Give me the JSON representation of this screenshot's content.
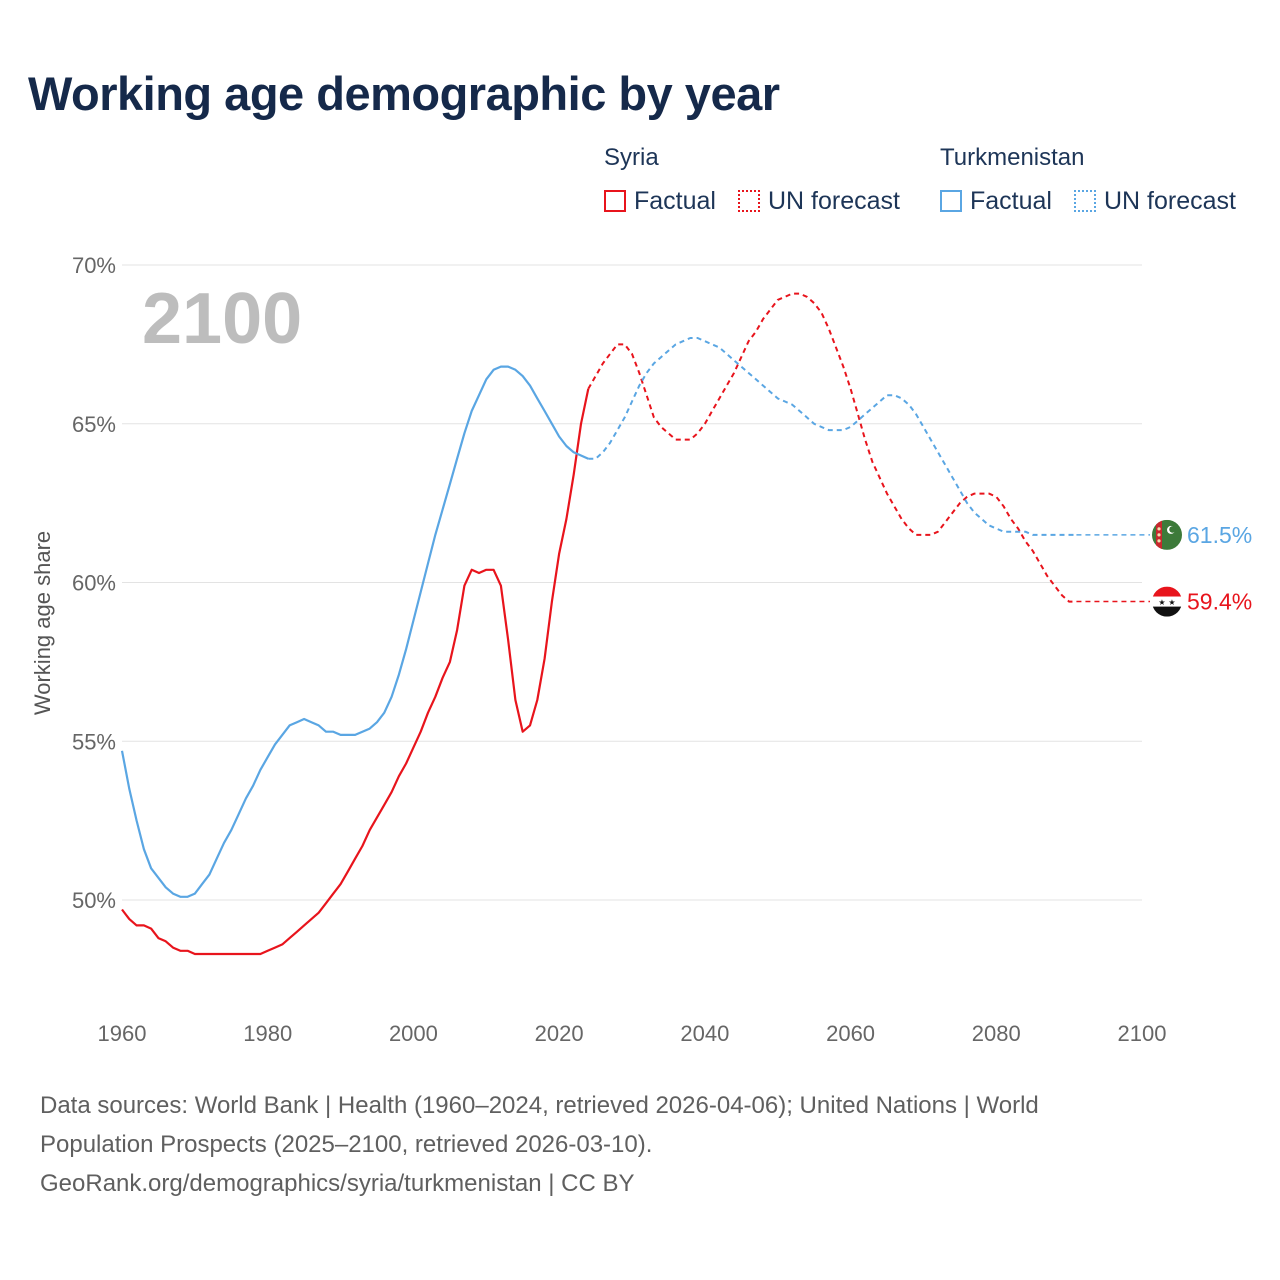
{
  "title": "Working age demographic by year",
  "legend": {
    "groups": [
      {
        "name": "Syria",
        "color": "#e8141c",
        "factual": "Factual",
        "forecast": "UN forecast"
      },
      {
        "name": "Turkmenistan",
        "color": "#5aa6e3",
        "factual": "Factual",
        "forecast": "UN forecast"
      }
    ]
  },
  "year_display": "2100",
  "source": {
    "line1": "Data sources: World Bank | Health (1960–2024, retrieved 2026-04-06); United Nations | World",
    "line2": "Population Prospects (2025–2100, retrieved 2026-03-10).",
    "line3": "GeoRank.org/demographics/syria/turkmenistan | CC BY"
  },
  "chart_data": {
    "type": "line",
    "title": "Working age demographic by year",
    "xlabel": "",
    "ylabel": "Working age share",
    "xlim": [
      1960,
      2100
    ],
    "ylim": [
      46.5,
      71
    ],
    "x_ticks": [
      1960,
      1980,
      2000,
      2020,
      2040,
      2060,
      2080,
      2100
    ],
    "y_ticks": [
      50,
      55,
      60,
      65,
      70
    ],
    "y_tick_labels": [
      "50%",
      "55%",
      "60%",
      "65%",
      "70%"
    ],
    "grid": true,
    "factual_end_year": 2024,
    "series": [
      {
        "name": "Syria",
        "color": "#e8141c",
        "end_label": "59.4%",
        "flag": "syria-flag",
        "points": [
          [
            1960,
            49.7
          ],
          [
            1961,
            49.4
          ],
          [
            1962,
            49.2
          ],
          [
            1963,
            49.2
          ],
          [
            1964,
            49.1
          ],
          [
            1965,
            48.8
          ],
          [
            1966,
            48.7
          ],
          [
            1967,
            48.5
          ],
          [
            1968,
            48.4
          ],
          [
            1969,
            48.4
          ],
          [
            1970,
            48.3
          ],
          [
            1971,
            48.3
          ],
          [
            1972,
            48.3
          ],
          [
            1973,
            48.3
          ],
          [
            1974,
            48.3
          ],
          [
            1975,
            48.3
          ],
          [
            1976,
            48.3
          ],
          [
            1977,
            48.3
          ],
          [
            1978,
            48.3
          ],
          [
            1979,
            48.3
          ],
          [
            1980,
            48.4
          ],
          [
            1981,
            48.5
          ],
          [
            1982,
            48.6
          ],
          [
            1983,
            48.8
          ],
          [
            1984,
            49.0
          ],
          [
            1985,
            49.2
          ],
          [
            1986,
            49.4
          ],
          [
            1987,
            49.6
          ],
          [
            1988,
            49.9
          ],
          [
            1989,
            50.2
          ],
          [
            1990,
            50.5
          ],
          [
            1991,
            50.9
          ],
          [
            1992,
            51.3
          ],
          [
            1993,
            51.7
          ],
          [
            1994,
            52.2
          ],
          [
            1995,
            52.6
          ],
          [
            1996,
            53.0
          ],
          [
            1997,
            53.4
          ],
          [
            1998,
            53.9
          ],
          [
            1999,
            54.3
          ],
          [
            2000,
            54.8
          ],
          [
            2001,
            55.3
          ],
          [
            2002,
            55.9
          ],
          [
            2003,
            56.4
          ],
          [
            2004,
            57.0
          ],
          [
            2005,
            57.5
          ],
          [
            2006,
            58.5
          ],
          [
            2007,
            59.9
          ],
          [
            2008,
            60.4
          ],
          [
            2009,
            60.3
          ],
          [
            2010,
            60.4
          ],
          [
            2011,
            60.4
          ],
          [
            2012,
            59.9
          ],
          [
            2013,
            58.2
          ],
          [
            2014,
            56.3
          ],
          [
            2015,
            55.3
          ],
          [
            2016,
            55.5
          ],
          [
            2017,
            56.3
          ],
          [
            2018,
            57.6
          ],
          [
            2019,
            59.4
          ],
          [
            2020,
            60.9
          ],
          [
            2021,
            62.0
          ],
          [
            2022,
            63.4
          ],
          [
            2023,
            65.0
          ],
          [
            2024,
            66.1
          ],
          [
            2025,
            66.5
          ],
          [
            2026,
            66.9
          ],
          [
            2027,
            67.2
          ],
          [
            2028,
            67.5
          ],
          [
            2029,
            67.5
          ],
          [
            2030,
            67.2
          ],
          [
            2031,
            66.6
          ],
          [
            2032,
            65.9
          ],
          [
            2033,
            65.2
          ],
          [
            2034,
            64.9
          ],
          [
            2035,
            64.7
          ],
          [
            2036,
            64.5
          ],
          [
            2037,
            64.5
          ],
          [
            2038,
            64.5
          ],
          [
            2039,
            64.7
          ],
          [
            2040,
            65.0
          ],
          [
            2041,
            65.4
          ],
          [
            2042,
            65.8
          ],
          [
            2043,
            66.2
          ],
          [
            2044,
            66.6
          ],
          [
            2045,
            67.1
          ],
          [
            2046,
            67.6
          ],
          [
            2047,
            67.9
          ],
          [
            2048,
            68.3
          ],
          [
            2049,
            68.6
          ],
          [
            2050,
            68.9
          ],
          [
            2051,
            69.0
          ],
          [
            2052,
            69.1
          ],
          [
            2053,
            69.1
          ],
          [
            2054,
            69.0
          ],
          [
            2055,
            68.8
          ],
          [
            2056,
            68.5
          ],
          [
            2057,
            68.0
          ],
          [
            2058,
            67.4
          ],
          [
            2059,
            66.8
          ],
          [
            2060,
            66.1
          ],
          [
            2061,
            65.3
          ],
          [
            2062,
            64.5
          ],
          [
            2063,
            63.8
          ],
          [
            2064,
            63.3
          ],
          [
            2065,
            62.8
          ],
          [
            2066,
            62.4
          ],
          [
            2067,
            62.0
          ],
          [
            2068,
            61.7
          ],
          [
            2069,
            61.5
          ],
          [
            2070,
            61.5
          ],
          [
            2071,
            61.5
          ],
          [
            2072,
            61.6
          ],
          [
            2073,
            61.9
          ],
          [
            2074,
            62.2
          ],
          [
            2075,
            62.5
          ],
          [
            2076,
            62.7
          ],
          [
            2077,
            62.8
          ],
          [
            2078,
            62.8
          ],
          [
            2079,
            62.8
          ],
          [
            2080,
            62.7
          ],
          [
            2081,
            62.4
          ],
          [
            2082,
            62.0
          ],
          [
            2083,
            61.7
          ],
          [
            2084,
            61.3
          ],
          [
            2085,
            61.0
          ],
          [
            2086,
            60.6
          ],
          [
            2087,
            60.2
          ],
          [
            2088,
            59.9
          ],
          [
            2089,
            59.6
          ],
          [
            2090,
            59.4
          ],
          [
            2091,
            59.4
          ]
        ]
      },
      {
        "name": "Turkmenistan",
        "color": "#5aa6e3",
        "end_label": "61.5%",
        "flag": "turkmenistan-flag",
        "points": [
          [
            1960,
            54.7
          ],
          [
            1961,
            53.5
          ],
          [
            1962,
            52.5
          ],
          [
            1963,
            51.6
          ],
          [
            1964,
            51.0
          ],
          [
            1965,
            50.7
          ],
          [
            1966,
            50.4
          ],
          [
            1967,
            50.2
          ],
          [
            1968,
            50.1
          ],
          [
            1969,
            50.1
          ],
          [
            1970,
            50.2
          ],
          [
            1971,
            50.5
          ],
          [
            1972,
            50.8
          ],
          [
            1973,
            51.3
          ],
          [
            1974,
            51.8
          ],
          [
            1975,
            52.2
          ],
          [
            1976,
            52.7
          ],
          [
            1977,
            53.2
          ],
          [
            1978,
            53.6
          ],
          [
            1979,
            54.1
          ],
          [
            1980,
            54.5
          ],
          [
            1981,
            54.9
          ],
          [
            1982,
            55.2
          ],
          [
            1983,
            55.5
          ],
          [
            1984,
            55.6
          ],
          [
            1985,
            55.7
          ],
          [
            1986,
            55.6
          ],
          [
            1987,
            55.5
          ],
          [
            1988,
            55.3
          ],
          [
            1989,
            55.3
          ],
          [
            1990,
            55.2
          ],
          [
            1991,
            55.2
          ],
          [
            1992,
            55.2
          ],
          [
            1993,
            55.3
          ],
          [
            1994,
            55.4
          ],
          [
            1995,
            55.6
          ],
          [
            1996,
            55.9
          ],
          [
            1997,
            56.4
          ],
          [
            1998,
            57.1
          ],
          [
            1999,
            57.9
          ],
          [
            2000,
            58.8
          ],
          [
            2001,
            59.7
          ],
          [
            2002,
            60.6
          ],
          [
            2003,
            61.5
          ],
          [
            2004,
            62.3
          ],
          [
            2005,
            63.1
          ],
          [
            2006,
            63.9
          ],
          [
            2007,
            64.7
          ],
          [
            2008,
            65.4
          ],
          [
            2009,
            65.9
          ],
          [
            2010,
            66.4
          ],
          [
            2011,
            66.7
          ],
          [
            2012,
            66.8
          ],
          [
            2013,
            66.8
          ],
          [
            2014,
            66.7
          ],
          [
            2015,
            66.5
          ],
          [
            2016,
            66.2
          ],
          [
            2017,
            65.8
          ],
          [
            2018,
            65.4
          ],
          [
            2019,
            65.0
          ],
          [
            2020,
            64.6
          ],
          [
            2021,
            64.3
          ],
          [
            2022,
            64.1
          ],
          [
            2023,
            64.0
          ],
          [
            2024,
            63.9
          ],
          [
            2025,
            63.9
          ],
          [
            2026,
            64.1
          ],
          [
            2027,
            64.4
          ],
          [
            2028,
            64.8
          ],
          [
            2029,
            65.2
          ],
          [
            2030,
            65.7
          ],
          [
            2031,
            66.2
          ],
          [
            2032,
            66.6
          ],
          [
            2033,
            66.9
          ],
          [
            2034,
            67.1
          ],
          [
            2035,
            67.3
          ],
          [
            2036,
            67.5
          ],
          [
            2037,
            67.6
          ],
          [
            2038,
            67.7
          ],
          [
            2039,
            67.7
          ],
          [
            2040,
            67.6
          ],
          [
            2041,
            67.5
          ],
          [
            2042,
            67.4
          ],
          [
            2043,
            67.2
          ],
          [
            2044,
            67.0
          ],
          [
            2045,
            66.8
          ],
          [
            2046,
            66.6
          ],
          [
            2047,
            66.4
          ],
          [
            2048,
            66.2
          ],
          [
            2049,
            66.0
          ],
          [
            2050,
            65.8
          ],
          [
            2051,
            65.7
          ],
          [
            2052,
            65.6
          ],
          [
            2053,
            65.4
          ],
          [
            2054,
            65.2
          ],
          [
            2055,
            65.0
          ],
          [
            2056,
            64.9
          ],
          [
            2057,
            64.8
          ],
          [
            2058,
            64.8
          ],
          [
            2059,
            64.8
          ],
          [
            2060,
            64.9
          ],
          [
            2061,
            65.1
          ],
          [
            2062,
            65.3
          ],
          [
            2063,
            65.5
          ],
          [
            2064,
            65.7
          ],
          [
            2065,
            65.9
          ],
          [
            2066,
            65.9
          ],
          [
            2067,
            65.8
          ],
          [
            2068,
            65.6
          ],
          [
            2069,
            65.3
          ],
          [
            2070,
            64.9
          ],
          [
            2071,
            64.5
          ],
          [
            2072,
            64.1
          ],
          [
            2073,
            63.7
          ],
          [
            2074,
            63.3
          ],
          [
            2075,
            62.9
          ],
          [
            2076,
            62.5
          ],
          [
            2077,
            62.2
          ],
          [
            2078,
            62.0
          ],
          [
            2079,
            61.8
          ],
          [
            2080,
            61.7
          ],
          [
            2081,
            61.6
          ],
          [
            2082,
            61.6
          ],
          [
            2083,
            61.6
          ],
          [
            2084,
            61.6
          ],
          [
            2085,
            61.5
          ],
          [
            2086,
            61.5
          ],
          [
            2087,
            61.5
          ],
          [
            2088,
            61.5
          ],
          [
            2089,
            61.5
          ],
          [
            2090,
            61.5
          ],
          [
            2091,
            61.5
          ]
        ]
      }
    ]
  }
}
